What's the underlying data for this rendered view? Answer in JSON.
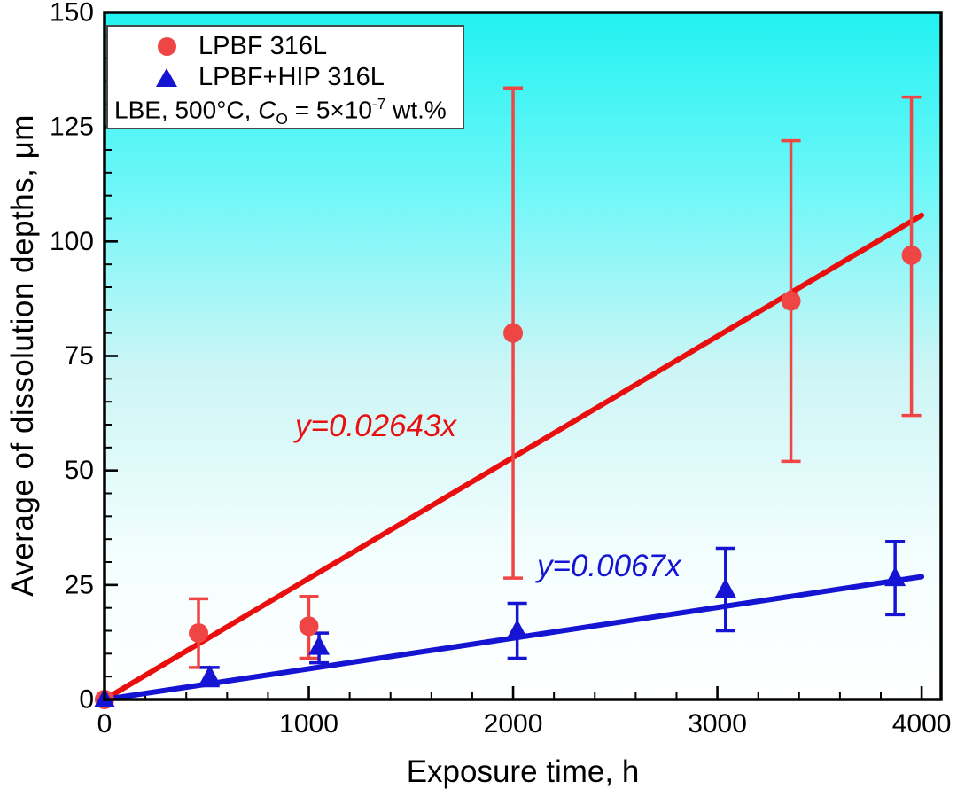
{
  "chart_data": {
    "type": "scatter",
    "title": "",
    "xlabel": "Exposure time, h",
    "ylabel": "Average of dissolution depths, μm",
    "xlim": [
      0,
      4095
    ],
    "ylim": [
      0,
      150
    ],
    "x_major_ticks": [
      0,
      1000,
      2000,
      3000,
      4000
    ],
    "x_minor_step": 200,
    "y_major_ticks": [
      0,
      25,
      50,
      75,
      100,
      125,
      150
    ],
    "y_minor_step": 5,
    "grid": "off",
    "legend_position": "top-left",
    "background_gradient": {
      "direction": "top-to-bottom",
      "stops": [
        {
          "offset": "0%",
          "color": "#22f1f1"
        },
        {
          "offset": "25%",
          "color": "#6cf7f8"
        },
        {
          "offset": "52%",
          "color": "#cdf5f6"
        },
        {
          "offset": "80%",
          "color": "#f4fefe"
        },
        {
          "offset": "100%",
          "color": "#ffffff"
        }
      ]
    },
    "series": [
      {
        "name": "LPBF 316L",
        "marker": "circle",
        "marker_color": "#f04545",
        "line_color": "#ea0f0f",
        "fit": {
          "label": "y=0.02643x",
          "slope": 0.02643,
          "x_start": 0,
          "x_end": 4000
        },
        "points": [
          {
            "x": 0,
            "y": 0,
            "err_low": 0,
            "err_high": 0
          },
          {
            "x": 460,
            "y": 14.5,
            "err_low": 7.5,
            "err_high": 7.5
          },
          {
            "x": 1000,
            "y": 16,
            "err_low": 7,
            "err_high": 6.5
          },
          {
            "x": 2000,
            "y": 80,
            "err_low": 53.5,
            "err_high": 53.5
          },
          {
            "x": 3360,
            "y": 87,
            "err_low": 35,
            "err_high": 35
          },
          {
            "x": 3950,
            "y": 97,
            "err_low": 35,
            "err_high": 34.5
          }
        ]
      },
      {
        "name": "LPBF+HIP 316L",
        "marker": "triangle",
        "marker_color": "#1414d2",
        "line_color": "#1414d2",
        "fit": {
          "label": "y=0.0067x",
          "slope": 0.0067,
          "x_start": 0,
          "x_end": 4000
        },
        "points": [
          {
            "x": 0,
            "y": 0,
            "err_low": 0,
            "err_high": 0
          },
          {
            "x": 515,
            "y": 5,
            "err_low": 2,
            "err_high": 2
          },
          {
            "x": 1050,
            "y": 11.5,
            "err_low": 3.5,
            "err_high": 3
          },
          {
            "x": 2020,
            "y": 15,
            "err_low": 6,
            "err_high": 6
          },
          {
            "x": 3040,
            "y": 24,
            "err_low": 9,
            "err_high": 9
          },
          {
            "x": 3870,
            "y": 26.5,
            "err_low": 8,
            "err_high": 8
          }
        ]
      }
    ]
  },
  "legend": {
    "items": [
      {
        "label": "LPBF 316L"
      },
      {
        "label": "LPBF+HIP 316L"
      }
    ],
    "condition_pre": "LBE, 500°C, ",
    "condition_var": "C",
    "condition_sub": "O",
    "condition_mid": " = 5×10",
    "condition_sup": "-7",
    "condition_post": " wt.%"
  },
  "annotations": {
    "red_fit": "y=0.02643x",
    "blue_fit": "y=0.0067x"
  },
  "colors": {
    "red_line": "#ea0f0f",
    "red_marker": "#f04545",
    "blue": "#1414d2",
    "axis": "#000000",
    "legend_border": "#4a4a4a"
  }
}
